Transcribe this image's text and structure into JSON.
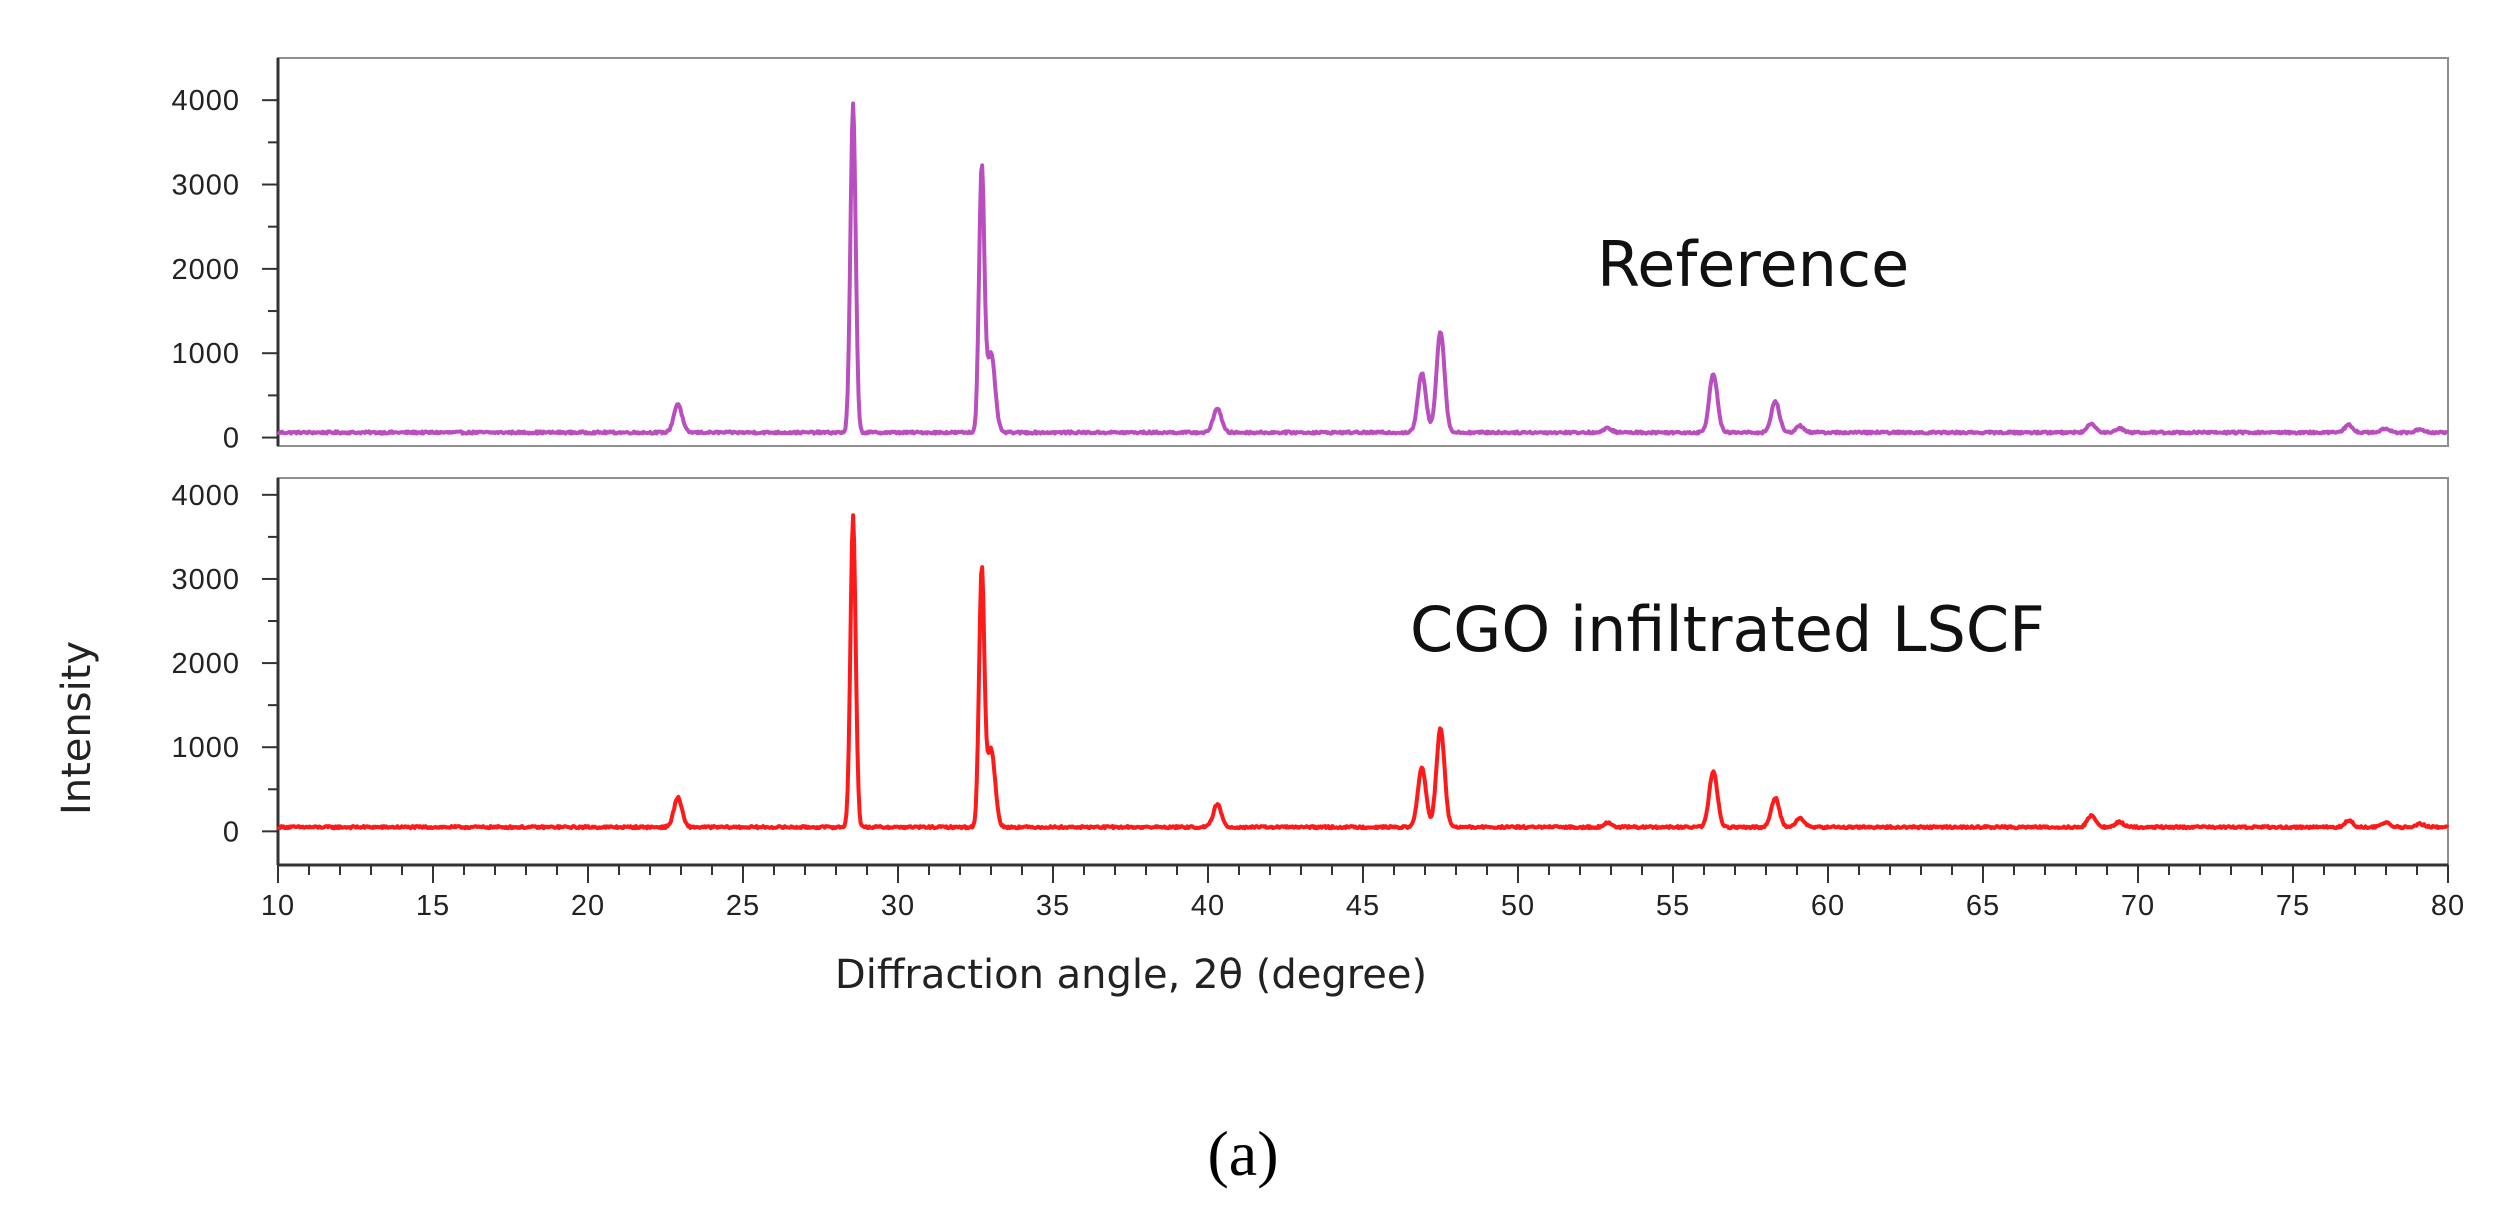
{
  "figure_caption": "(a)",
  "chart_data": {
    "type": "line",
    "xlabel": "Diffraction angle, 2θ (degree)",
    "ylabel": "Intensity",
    "xlim": [
      10,
      80
    ],
    "x_ticks": [
      10,
      15,
      20,
      25,
      30,
      35,
      40,
      45,
      50,
      55,
      60,
      65,
      70,
      75,
      80
    ],
    "x_tick_labels": [
      "10",
      "15",
      "20",
      "25",
      "30",
      "35",
      "40",
      "45",
      "50",
      "55",
      "60",
      "65",
      "70",
      "75",
      "80"
    ],
    "grid": false,
    "panels": [
      {
        "name": "Reference",
        "annotation": "Reference",
        "color": "#b94fbf",
        "ylim": [
          -100,
          4500
        ],
        "y_ticks": [
          0,
          1000,
          2000,
          3000,
          4000
        ],
        "y_tick_labels": [
          "0",
          "1000",
          "2000",
          "3000",
          "4000"
        ],
        "baseline": 60,
        "peaks": [
          {
            "x": 22.9,
            "y": 400
          },
          {
            "x": 28.55,
            "y": 3950
          },
          {
            "x": 32.7,
            "y": 3200
          },
          {
            "x": 33.0,
            "y": 1000
          },
          {
            "x": 40.3,
            "y": 350
          },
          {
            "x": 46.9,
            "y": 760
          },
          {
            "x": 47.5,
            "y": 1260
          },
          {
            "x": 52.9,
            "y": 110
          },
          {
            "x": 56.3,
            "y": 760
          },
          {
            "x": 58.3,
            "y": 430
          },
          {
            "x": 59.1,
            "y": 140
          },
          {
            "x": 68.5,
            "y": 170
          },
          {
            "x": 69.4,
            "y": 110
          },
          {
            "x": 76.8,
            "y": 150
          },
          {
            "x": 78.0,
            "y": 110
          },
          {
            "x": 79.1,
            "y": 100
          }
        ]
      },
      {
        "name": "CGO infiltrated LSCF",
        "annotation": "CGO infiltrated LSCF",
        "color": "#ff1a1a",
        "ylim": [
          -400,
          4200
        ],
        "y_ticks": [
          0,
          1000,
          2000,
          3000,
          4000
        ],
        "y_tick_labels": [
          "0",
          "1000",
          "2000",
          "3000",
          "4000"
        ],
        "baseline": 50,
        "peaks": [
          {
            "x": 22.9,
            "y": 400
          },
          {
            "x": 28.55,
            "y": 3750
          },
          {
            "x": 32.7,
            "y": 3100
          },
          {
            "x": 33.0,
            "y": 980
          },
          {
            "x": 40.3,
            "y": 320
          },
          {
            "x": 46.9,
            "y": 760
          },
          {
            "x": 47.5,
            "y": 1220
          },
          {
            "x": 52.9,
            "y": 100
          },
          {
            "x": 56.3,
            "y": 720
          },
          {
            "x": 58.3,
            "y": 400
          },
          {
            "x": 59.1,
            "y": 160
          },
          {
            "x": 68.5,
            "y": 190
          },
          {
            "x": 69.4,
            "y": 110
          },
          {
            "x": 76.8,
            "y": 130
          },
          {
            "x": 78.0,
            "y": 100
          },
          {
            "x": 79.1,
            "y": 90
          }
        ]
      }
    ]
  }
}
